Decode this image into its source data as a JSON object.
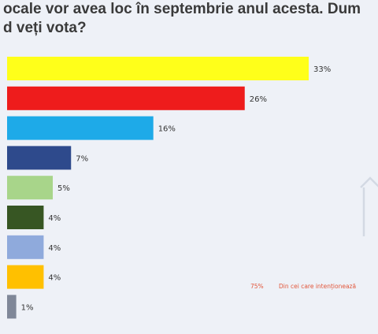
{
  "title_lines": [
    "ocale vor avea loc în septembrie anul acesta. Dum",
    "d veți vota?"
  ],
  "note": {
    "value": "75%",
    "text": "Din cei care intenționează"
  },
  "chart_data": {
    "type": "bar",
    "orientation": "horizontal",
    "values": [
      33,
      26,
      16,
      7,
      5,
      4,
      4,
      4,
      1
    ],
    "labels": [
      "33%",
      "26%",
      "16%",
      "7%",
      "5%",
      "4%",
      "4%",
      "4%",
      "1%"
    ],
    "colors": [
      "#ffff1a",
      "#ee1c1c",
      "#1eaae8",
      "#2e4a8c",
      "#a8d58a",
      "#375623",
      "#8faadc",
      "#ffc000",
      "#7f8798"
    ],
    "xlim": [
      0,
      33
    ],
    "grid": false,
    "legend": "none"
  }
}
